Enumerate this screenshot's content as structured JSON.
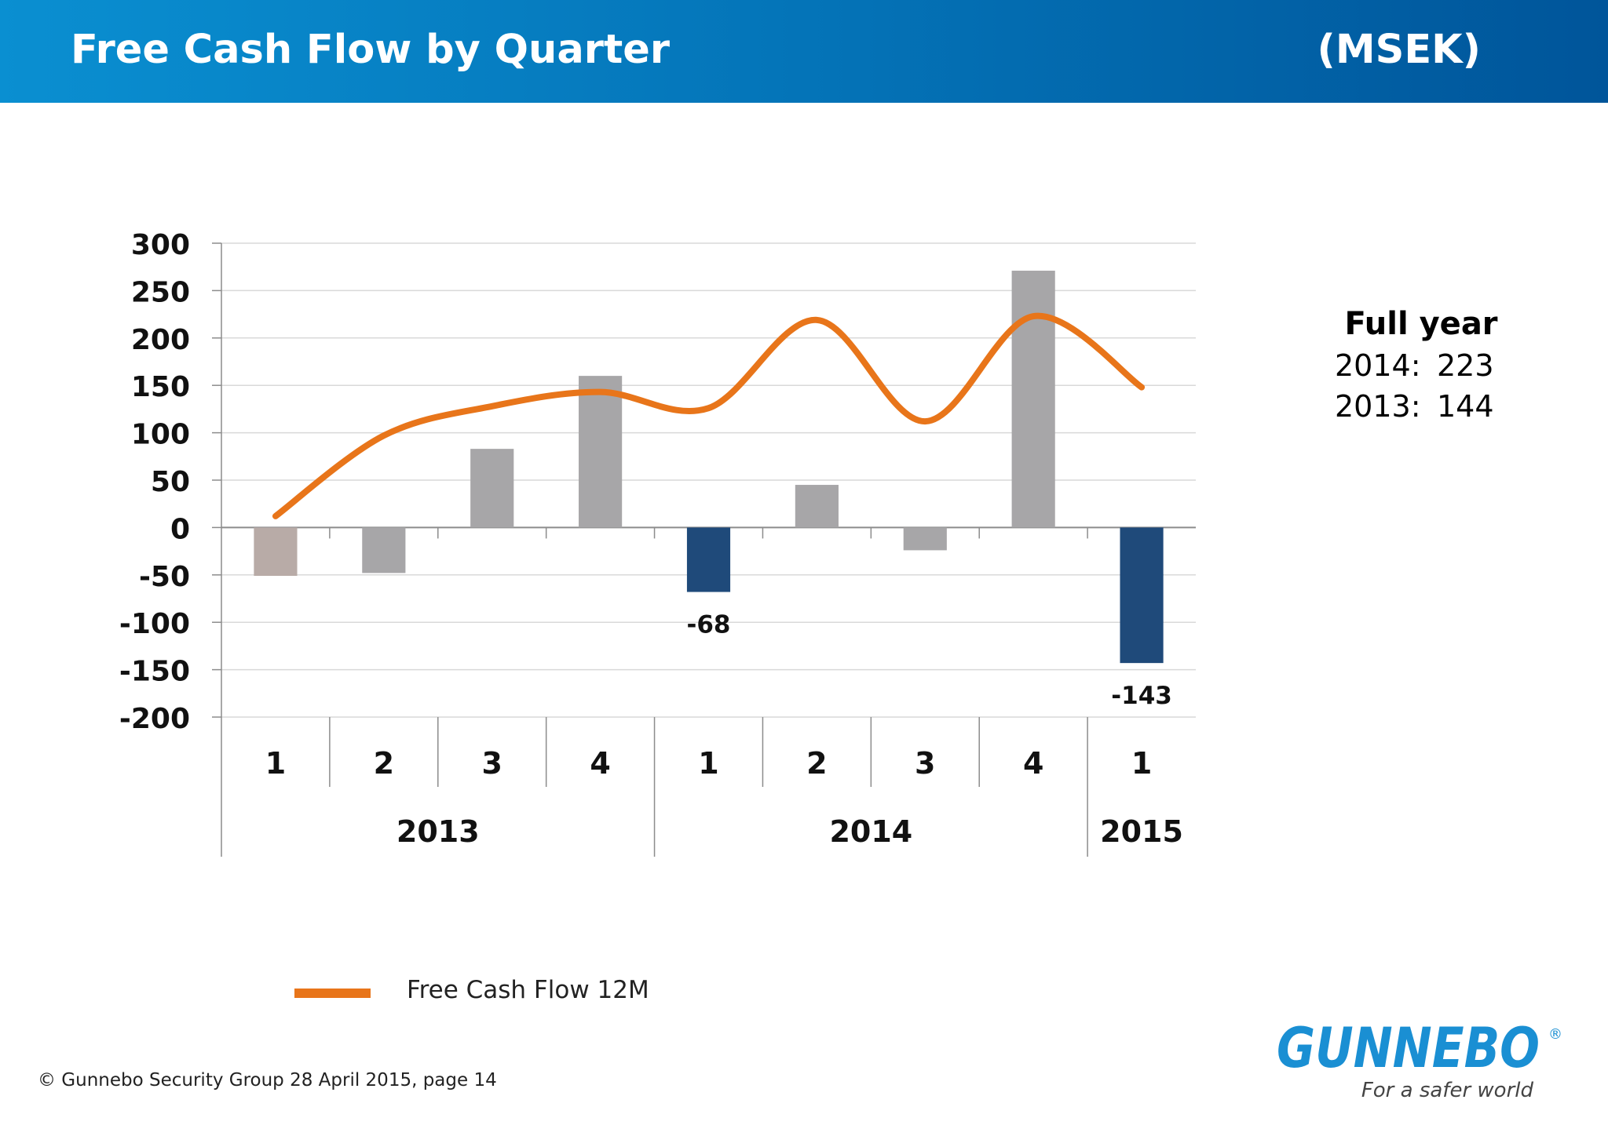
{
  "header": {
    "title": "Free Cash Flow by Quarter",
    "unit": "(MSEK)"
  },
  "chart_data": {
    "type": "bar",
    "title": "",
    "xlabel": "",
    "ylabel": "",
    "ylim": [
      -200,
      300
    ],
    "yticks": [
      300,
      250,
      200,
      150,
      100,
      50,
      0,
      -50,
      -100,
      -150,
      -200
    ],
    "grid": true,
    "categories": [
      "1",
      "2",
      "3",
      "4",
      "1",
      "2",
      "3",
      "4",
      "1"
    ],
    "year_groups": [
      {
        "label": "2013",
        "quarters": 4
      },
      {
        "label": "2014",
        "quarters": 4
      },
      {
        "label": "2015",
        "quarters": 1
      }
    ],
    "series": [
      {
        "type": "bar",
        "values": [
          -51,
          -48,
          83,
          160,
          -68,
          45,
          -24,
          271,
          -143
        ],
        "colors": [
          "#b8aba7",
          "#a7a6a8",
          "#a7a6a8",
          "#a7a6a8",
          "#1f4a7a",
          "#a7a6a8",
          "#a7a6a8",
          "#a7a6a8",
          "#1f4a7a"
        ],
        "data_labels": [
          "",
          "",
          "",
          "",
          "-68",
          "",
          "",
          "",
          "-143"
        ]
      },
      {
        "type": "line",
        "name": "Free Cash Flow 12M",
        "color": "#e8751a",
        "values": [
          12,
          97,
          128,
          143,
          126,
          219,
          112,
          223,
          148
        ]
      }
    ],
    "legend": {
      "placement": "bottom-left",
      "entries": [
        "Free Cash Flow 12M"
      ]
    }
  },
  "full_year": {
    "title": "Full year",
    "rows": [
      {
        "year": "2014:",
        "value": "223"
      },
      {
        "year": "2013:",
        "value": "144"
      }
    ]
  },
  "footer": {
    "text": "© Gunnebo Security Group 28 April 2015, page 14"
  },
  "logo": {
    "brand": "GUNNEBO",
    "registered": "®",
    "tagline": "For a safer world",
    "color": "#1a8fd3"
  }
}
